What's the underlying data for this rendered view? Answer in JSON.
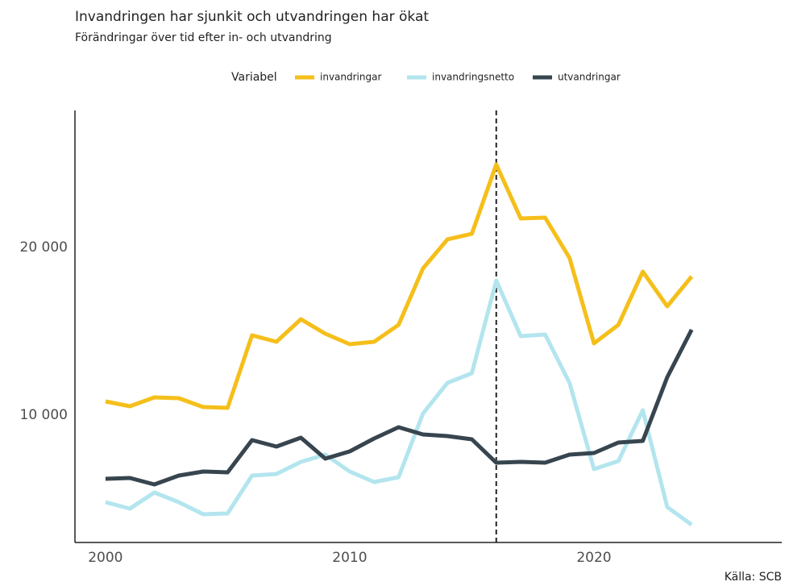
{
  "chart_data": {
    "type": "line",
    "title": "Invandringen har sjunkit och utvandringen har ökat",
    "subtitle": "Förändringar över tid efter in- och utvandring",
    "legend_title": "Variabel",
    "source": "Källa: SCB",
    "x": [
      2000,
      2001,
      2002,
      2003,
      2004,
      2005,
      2006,
      2007,
      2008,
      2009,
      2010,
      2011,
      2012,
      2013,
      2014,
      2015,
      2016,
      2017,
      2018,
      2019,
      2020,
      2021,
      2022,
      2023,
      2024
    ],
    "series": [
      {
        "name": "invandringar",
        "color": "#f5bf1b",
        "values": [
          10817,
          10529,
          11058,
          11010,
          10481,
          10433,
          14760,
          14375,
          15721,
          14856,
          14231,
          14375,
          15385,
          18750,
          20481,
          20817,
          24952,
          21731,
          21779,
          19375,
          14279,
          15385,
          18558,
          16490,
          18269
        ]
      },
      {
        "name": "invandringsnetto",
        "color": "#b3e5ee",
        "values": [
          4808,
          4423,
          5385,
          4808,
          4087,
          4135,
          6394,
          6490,
          7212,
          7644,
          6635,
          6010,
          6298,
          10096,
          11923,
          12500,
          18029,
          14712,
          14808,
          11923,
          6779,
          7260,
          10288,
          4519,
          3462
        ]
      },
      {
        "name": "utvandringar",
        "color": "#37454f",
        "values": [
          6202,
          6250,
          5865,
          6394,
          6635,
          6587,
          8510,
          8125,
          8654,
          7404,
          7837,
          8606,
          9279,
          8846,
          8750,
          8558,
          7163,
          7212,
          7163,
          7644,
          7740,
          8365,
          8462,
          12260,
          15096
        ]
      }
    ],
    "vline": 2016,
    "xlim": [
      1998.75,
      2027.69
    ],
    "ylim": [
      2404,
      28173
    ],
    "xticks": [
      2000,
      2010,
      2020
    ],
    "yticks": [
      {
        "value": 10000,
        "label": "10 000"
      },
      {
        "value": 20000,
        "label": "20 000"
      }
    ],
    "grid": false
  }
}
